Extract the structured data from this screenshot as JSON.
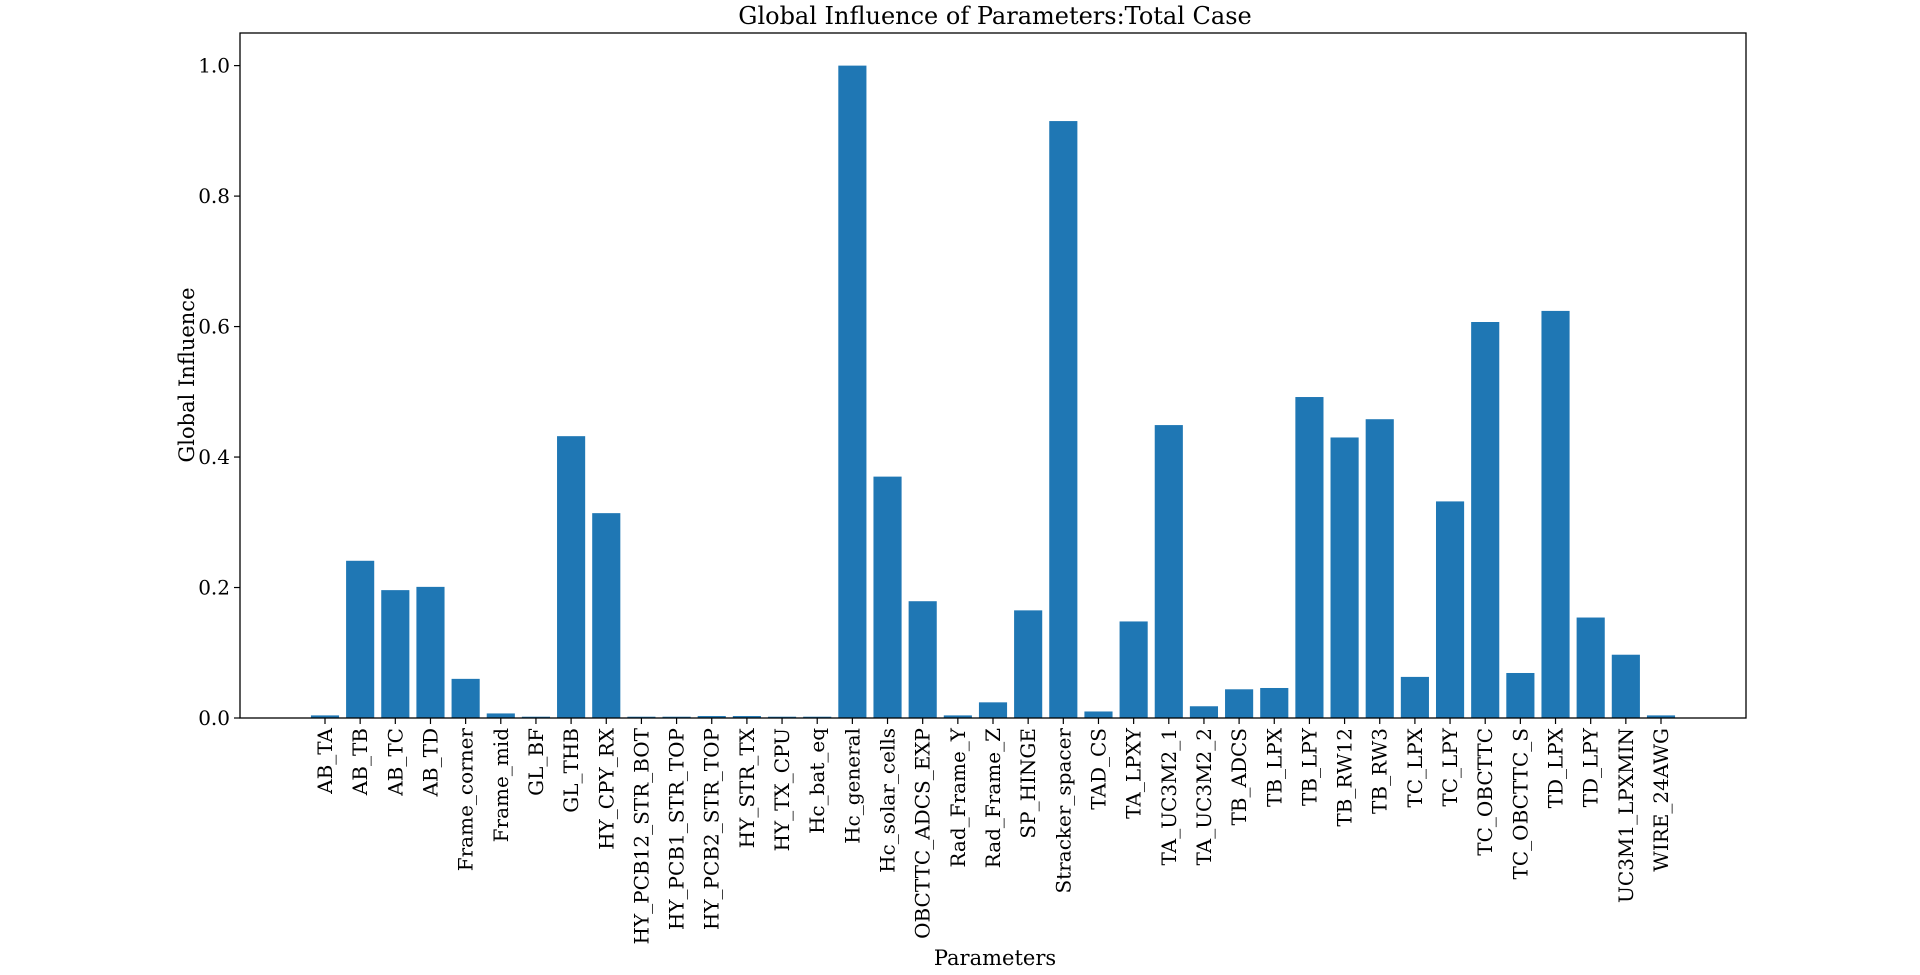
{
  "chart_data": {
    "type": "bar",
    "title": "Global Influence of Parameters:Total Case",
    "xlabel": "Parameters",
    "ylabel": "Global Influence",
    "ylim": [
      0,
      1.05
    ],
    "yticks": [
      "0.0",
      "0.2",
      "0.4",
      "0.6",
      "0.8",
      "1.0"
    ],
    "grid": false,
    "bar_color": "#1f77b4",
    "categories": [
      "AB_TA",
      "AB_TB",
      "AB_TC",
      "AB_TD",
      "Frame_corner",
      "Frame_mid",
      "GL_BF",
      "GL_THB",
      "HY_CPY_RX",
      "HY_PCB12_STR_BOT",
      "HY_PCB1_STR_TOP",
      "HY_PCB2_STR_TOP",
      "HY_STR_TX",
      "HY_TX_CPU",
      "Hc_bat_eq",
      "Hc_general",
      "Hc_solar_cells",
      "OBCTTC_ADCS_EXP",
      "Rad_Frame_Y",
      "Rad_Frame_Z",
      "SP_HINGE",
      "Stracker_spacer",
      "TAD_CS",
      "TA_LPXY",
      "TA_UC3M2_1",
      "TA_UC3M2_2",
      "TB_ADCS",
      "TB_LPX",
      "TB_LPY",
      "TB_RW12",
      "TB_RW3",
      "TC_LPX",
      "TC_LPY",
      "TC_OBCTTC",
      "TC_OBCTTC_S",
      "TD_LPX",
      "TD_LPY",
      "UC3M1_LPXMIN",
      "WIRE_24AWG"
    ],
    "values": [
      0.004,
      0.241,
      0.196,
      0.201,
      0.06,
      0.007,
      0.002,
      0.432,
      0.314,
      0.002,
      0.002,
      0.003,
      0.003,
      0.002,
      0.002,
      1.0,
      0.37,
      0.179,
      0.004,
      0.024,
      0.165,
      0.915,
      0.01,
      0.148,
      0.449,
      0.018,
      0.044,
      0.046,
      0.492,
      0.43,
      0.458,
      0.063,
      0.332,
      0.607,
      0.069,
      0.624,
      0.154,
      0.097,
      0.004
    ]
  }
}
